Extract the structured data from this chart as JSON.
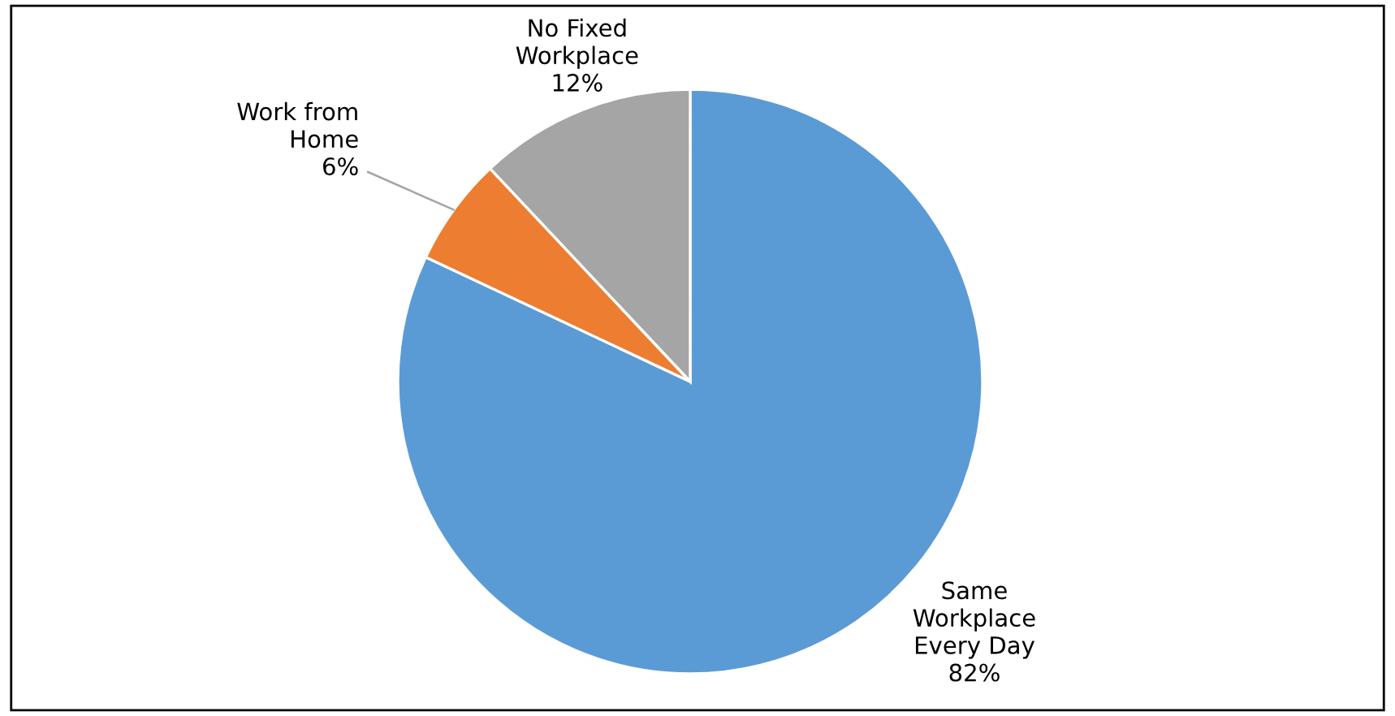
{
  "chart_data": {
    "type": "pie",
    "categories": [
      "Same Workplace Every Day",
      "Work from Home",
      "No Fixed Workplace"
    ],
    "values": [
      82,
      6,
      12
    ],
    "colors": [
      "#5b9bd5",
      "#ed7d31",
      "#a5a5a5"
    ],
    "value_labels": [
      "82%",
      "6%",
      "12%"
    ],
    "legend": false
  }
}
